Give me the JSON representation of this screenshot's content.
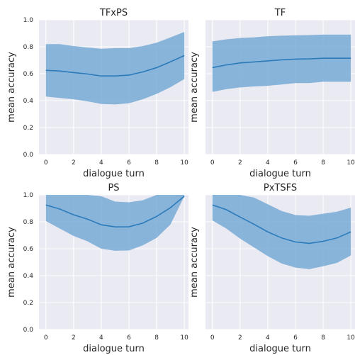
{
  "chart_data": [
    {
      "type": "line",
      "title": "TFxPS",
      "xlabel": "dialogue turn",
      "ylabel": "mean accuracy",
      "xlim": [
        -0.5,
        10.3
      ],
      "ylim": [
        0.0,
        1.0
      ],
      "xticks": [
        "0",
        "2",
        "4",
        "6",
        "8",
        "10"
      ],
      "yticks": [
        "0.0",
        "0.2",
        "0.4",
        "0.6",
        "0.8",
        "1.0"
      ],
      "show_yticks": true,
      "show_xticks": true,
      "grid": true,
      "x": [
        0,
        1,
        2,
        3,
        4,
        5,
        6,
        7,
        8,
        9,
        10
      ],
      "mean": [
        0.625,
        0.62,
        0.608,
        0.598,
        0.583,
        0.583,
        0.59,
        0.613,
        0.645,
        0.688,
        0.735
      ],
      "upper": [
        0.82,
        0.82,
        0.805,
        0.795,
        0.785,
        0.79,
        0.79,
        0.805,
        0.83,
        0.87,
        0.91
      ],
      "lower": [
        0.43,
        0.42,
        0.41,
        0.395,
        0.375,
        0.372,
        0.38,
        0.41,
        0.45,
        0.5,
        0.56
      ]
    },
    {
      "type": "line",
      "title": "TF",
      "xlabel": "dialogue turn",
      "ylabel": "mean accuracy",
      "xlim": [
        -0.5,
        10.3
      ],
      "ylim": [
        0.0,
        1.0
      ],
      "xticks": [
        "0",
        "2",
        "4",
        "6",
        "8",
        "10"
      ],
      "yticks": [],
      "show_yticks": false,
      "show_xticks": true,
      "grid": true,
      "x": [
        0,
        1,
        2,
        3,
        4,
        5,
        6,
        7,
        8,
        9,
        10
      ],
      "mean": [
        0.645,
        0.665,
        0.68,
        0.687,
        0.695,
        0.703,
        0.708,
        0.71,
        0.715,
        0.715,
        0.715
      ],
      "upper": [
        0.84,
        0.855,
        0.865,
        0.87,
        0.878,
        0.882,
        0.885,
        0.887,
        0.89,
        0.89,
        0.89
      ],
      "lower": [
        0.465,
        0.485,
        0.498,
        0.505,
        0.51,
        0.52,
        0.53,
        0.53,
        0.54,
        0.54,
        0.54
      ]
    },
    {
      "type": "line",
      "title": "PS",
      "xlabel": "dialogue turn",
      "ylabel": "mean accuracy",
      "xlim": [
        -0.5,
        10.3
      ],
      "ylim": [
        0.0,
        1.0
      ],
      "xticks": [
        "0",
        "2",
        "4",
        "6",
        "8",
        "10"
      ],
      "yticks": [
        "0.0",
        "0.2",
        "0.4",
        "0.6",
        "0.8",
        "1.0"
      ],
      "show_yticks": true,
      "show_xticks": true,
      "grid": true,
      "x": [
        0,
        1,
        2,
        3,
        4,
        5,
        6,
        7,
        8,
        9,
        10
      ],
      "mean": [
        0.925,
        0.895,
        0.852,
        0.82,
        0.778,
        0.762,
        0.763,
        0.79,
        0.84,
        0.905,
        0.99
      ],
      "upper": [
        1.0,
        1.0,
        1.0,
        1.0,
        0.99,
        0.95,
        0.945,
        0.96,
        1.0,
        1.0,
        1.0
      ],
      "lower": [
        0.805,
        0.75,
        0.695,
        0.655,
        0.6,
        0.585,
        0.587,
        0.625,
        0.68,
        0.78,
        0.99
      ]
    },
    {
      "type": "line",
      "title": "PxTSFS",
      "xlabel": "dialogue turn",
      "ylabel": "mean accuracy",
      "xlim": [
        -0.5,
        10.3
      ],
      "ylim": [
        0.0,
        1.0
      ],
      "xticks": [
        "0",
        "2",
        "4",
        "6",
        "8",
        "10"
      ],
      "yticks": [],
      "show_yticks": false,
      "show_xticks": true,
      "grid": true,
      "x": [
        0,
        1,
        2,
        3,
        4,
        5,
        6,
        7,
        8,
        9,
        10
      ],
      "mean": [
        0.925,
        0.89,
        0.835,
        0.782,
        0.725,
        0.68,
        0.65,
        0.64,
        0.655,
        0.68,
        0.725
      ],
      "upper": [
        1.0,
        1.0,
        1.0,
        0.98,
        0.93,
        0.88,
        0.85,
        0.845,
        0.86,
        0.875,
        0.905
      ],
      "lower": [
        0.81,
        0.75,
        0.675,
        0.61,
        0.545,
        0.49,
        0.46,
        0.448,
        0.47,
        0.495,
        0.55
      ]
    }
  ],
  "colors": {
    "line": "#2b7bba",
    "band": "#78aad6",
    "band_opacity": "0.85",
    "plot_bg": "#eaeaf2",
    "grid": "#ffffff",
    "text": "#262626"
  }
}
